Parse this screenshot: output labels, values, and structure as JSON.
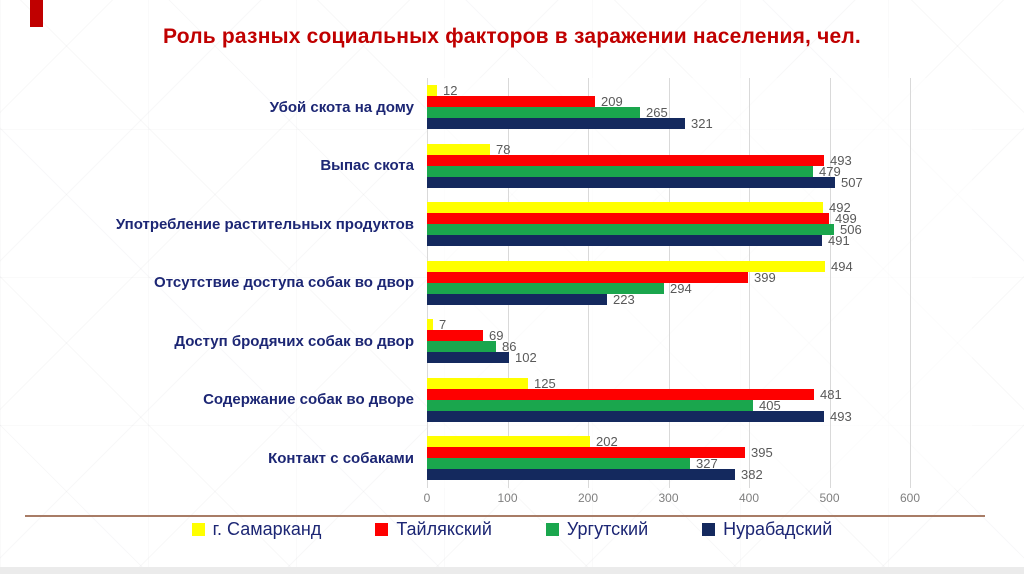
{
  "title": "Роль разных социальных факторов в заражении населения, чел.",
  "colors": {
    "title_text": "#c00000",
    "accent_bar": "#c00000",
    "category_label": "#1c2674",
    "value_label": "#595959",
    "tick_label": "#7f7f7f",
    "gridline": "#d9d9d9",
    "separator_line": "#a87c66",
    "legend_text": "#1c2674"
  },
  "chart_data": {
    "type": "bar",
    "orientation": "horizontal",
    "title": "Роль разных социальных факторов в заражении населения, чел.",
    "categories": [
      "Убой скота на дому",
      "Выпас скота",
      "Употребление растительных продуктов",
      "Отсутствие доступа собак во двор",
      "Доступ бродячих собак во двор",
      "Содержание собак во дворе",
      "Контакт с собаками"
    ],
    "series": [
      {
        "name": "г. Самарканд",
        "color": "#ffff00",
        "values": [
          12,
          78,
          492,
          494,
          7,
          125,
          202
        ]
      },
      {
        "name": "Тайлякский",
        "color": "#fe0000",
        "values": [
          209,
          493,
          499,
          399,
          69,
          481,
          395
        ]
      },
      {
        "name": "Ургутский",
        "color": "#1aa64d",
        "values": [
          265,
          479,
          506,
          294,
          86,
          405,
          327
        ]
      },
      {
        "name": "Нурабадский",
        "color": "#14295e",
        "values": [
          321,
          507,
          491,
          223,
          102,
          493,
          382
        ]
      }
    ],
    "xlabel": "",
    "ylabel": "",
    "xlim": [
      0,
      600
    ],
    "x_ticks": [
      0,
      100,
      200,
      300,
      400,
      500,
      600
    ],
    "grid": true,
    "value_labels": true,
    "legend_position": "bottom"
  }
}
